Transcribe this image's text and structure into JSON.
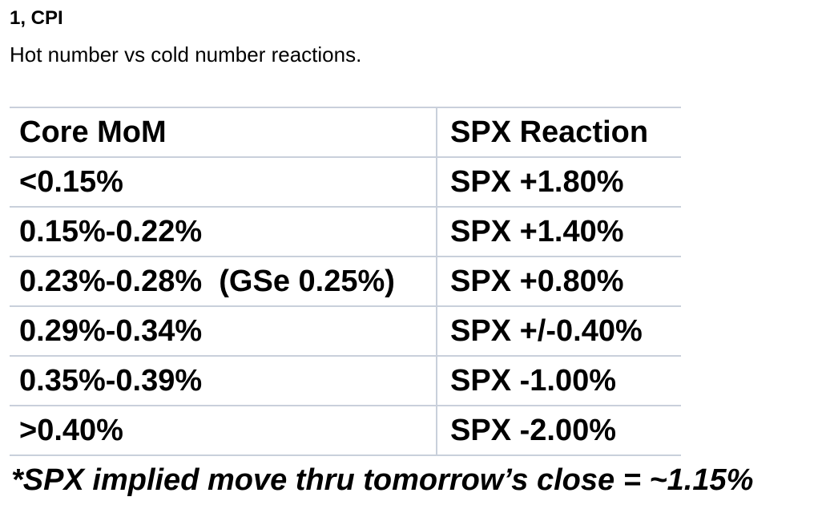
{
  "heading": "1, CPI",
  "subheading": "Hot number vs cold number reactions.",
  "table": {
    "headers": [
      "Core MoM",
      "SPX Reaction"
    ],
    "rows": [
      [
        "<0.15%",
        "SPX +1.80%"
      ],
      [
        "0.15%-0.22%",
        "SPX +1.40%"
      ],
      [
        "0.23%-0.28%  (GSe 0.25%)",
        "SPX +0.80%"
      ],
      [
        "0.29%-0.34%",
        "SPX +/-0.40%"
      ],
      [
        "0.35%-0.39%",
        "SPX -1.00%"
      ],
      [
        ">0.40%",
        "SPX -2.00%"
      ]
    ]
  },
  "footnote": "*SPX implied move thru tomorrow’s close = ~1.15%",
  "colors": {
    "text": "#000000",
    "grid_line": "#c9d0db",
    "background": "#ffffff"
  }
}
